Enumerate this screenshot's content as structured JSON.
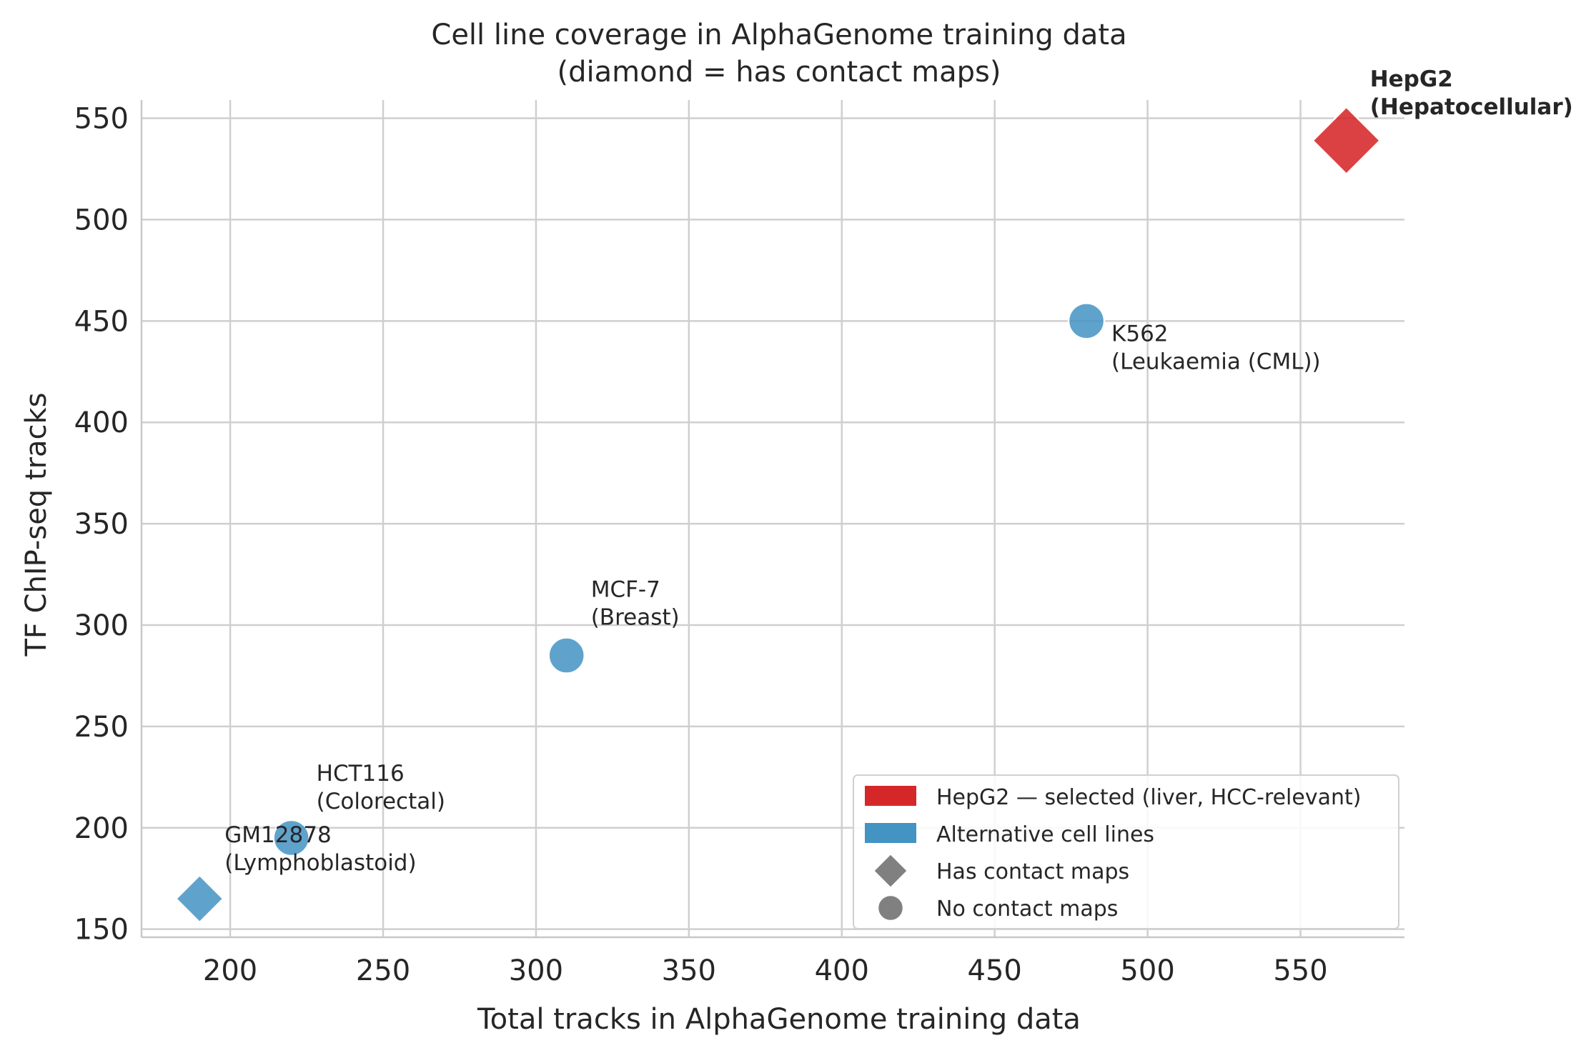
{
  "chart_data": {
    "type": "scatter",
    "title": "Cell line coverage in AlphaGenome training data",
    "subtitle": "(diamond = has contact maps)",
    "xlabel": "Total tracks in AlphaGenome training data",
    "ylabel": "TF ChIP-seq tracks",
    "xlim": [
      171,
      584
    ],
    "ylim": [
      146,
      559
    ],
    "xticks": [
      200,
      250,
      300,
      350,
      400,
      450,
      500,
      550
    ],
    "yticks": [
      150,
      200,
      250,
      300,
      350,
      400,
      450,
      500,
      550
    ],
    "grid": true,
    "legend_position": "lower-right",
    "colors": {
      "selected": "#d62728",
      "alternative": "#4393c3",
      "shape_key": "#808080"
    },
    "points": [
      {
        "name": "HepG2",
        "annotation": [
          "HepG2",
          "(Hepatocellular)"
        ],
        "x": 565,
        "y": 539,
        "group": "selected",
        "marker": "diamond",
        "bold": true
      },
      {
        "name": "K562",
        "annotation": [
          "K562",
          "(Leukaemia (CML))"
        ],
        "x": 480,
        "y": 450,
        "group": "alternative",
        "marker": "circle",
        "bold": false
      },
      {
        "name": "MCF-7",
        "annotation": [
          "MCF-7",
          "(Breast)"
        ],
        "x": 310,
        "y": 285,
        "group": "alternative",
        "marker": "circle",
        "bold": false
      },
      {
        "name": "HCT116",
        "annotation": [
          "HCT116",
          "(Colorectal)"
        ],
        "x": 220,
        "y": 195,
        "group": "alternative",
        "marker": "circle",
        "bold": false
      },
      {
        "name": "GM12878",
        "annotation": [
          "GM12878",
          "(Lymphoblastoid)"
        ],
        "x": 190,
        "y": 165,
        "group": "alternative",
        "marker": "diamond",
        "bold": false
      }
    ],
    "legend": [
      {
        "label": "HepG2 — selected (liver, HCC-relevant)",
        "swatch": "patch",
        "color": "#d62728"
      },
      {
        "label": "Alternative cell lines",
        "swatch": "patch",
        "color": "#4393c3"
      },
      {
        "label": "Has contact maps",
        "swatch": "diamond",
        "color": "#808080"
      },
      {
        "label": "No contact maps",
        "swatch": "circle",
        "color": "#808080"
      }
    ]
  }
}
